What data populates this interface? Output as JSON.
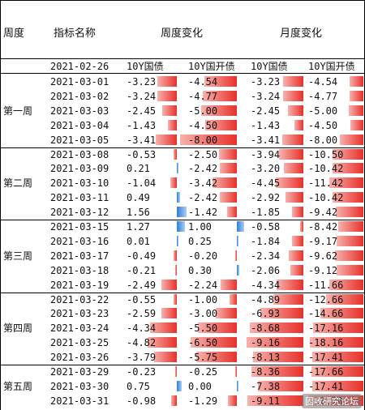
{
  "header": {
    "col_week": "周度",
    "col_indicator": "指标名称",
    "col_weekly_change": "周度变化",
    "col_monthly_change": "月度变化"
  },
  "base_row": {
    "date": "2021-02-26",
    "labels": [
      "10Y国债",
      "10Y国开债",
      "10Y国债",
      "10Y国开债"
    ]
  },
  "weeks": [
    {
      "label": "第一周",
      "rows": [
        {
          "date": "2021-03-01",
          "values": [
            "-3.23",
            "-4.54",
            "-3.23",
            "-4.54"
          ]
        },
        {
          "date": "2021-03-02",
          "values": [
            "-3.24",
            "-4.77",
            "-3.24",
            "-4.77"
          ]
        },
        {
          "date": "2021-03-03",
          "values": [
            "-2.45",
            "-5.00",
            "-2.45",
            "-5.00"
          ]
        },
        {
          "date": "2021-03-04",
          "values": [
            "-1.43",
            "-4.50",
            "-1.43",
            "-4.50"
          ]
        },
        {
          "date": "2021-03-05",
          "values": [
            "-3.41",
            "-8.00",
            "-3.41",
            "-8.00"
          ]
        }
      ]
    },
    {
      "label": "第二周",
      "rows": [
        {
          "date": "2021-03-08",
          "values": [
            "-0.53",
            "-2.50",
            "-3.94",
            "-10.50"
          ]
        },
        {
          "date": "2021-03-09",
          "values": [
            "0.21",
            "-2.42",
            "-3.20",
            "-10.42"
          ]
        },
        {
          "date": "2021-03-10",
          "values": [
            "-1.04",
            "-3.42",
            "-4.45",
            "-11.42"
          ]
        },
        {
          "date": "2021-03-11",
          "values": [
            "0.49",
            "-2.42",
            "-2.92",
            "-10.42"
          ]
        },
        {
          "date": "2021-03-12",
          "values": [
            "1.56",
            "-1.42",
            "-1.85",
            "-9.42"
          ]
        }
      ]
    },
    {
      "label": "第三周",
      "rows": [
        {
          "date": "2021-03-15",
          "values": [
            "1.27",
            "1.00",
            "-0.58",
            "-8.42"
          ]
        },
        {
          "date": "2021-03-16",
          "values": [
            "0.01",
            "0.25",
            "-1.84",
            "-9.17"
          ]
        },
        {
          "date": "2021-03-17",
          "values": [
            "-0.49",
            "-0.20",
            "-2.34",
            "-9.62"
          ]
        },
        {
          "date": "2021-03-18",
          "values": [
            "-0.21",
            "0.30",
            "-2.06",
            "-9.12"
          ]
        },
        {
          "date": "2021-03-19",
          "values": [
            "-2.49",
            "-2.24",
            "-4.34",
            "-11.66"
          ]
        }
      ]
    },
    {
      "label": "第四周",
      "rows": [
        {
          "date": "2021-03-22",
          "values": [
            "-0.55",
            "-1.00",
            "-4.89",
            "-12.66"
          ]
        },
        {
          "date": "2021-03-23",
          "values": [
            "-2.59",
            "-3.00",
            "-6.93",
            "-14.66"
          ]
        },
        {
          "date": "2021-03-24",
          "values": [
            "-4.34",
            "-5.50",
            "-8.68",
            "-17.16"
          ]
        },
        {
          "date": "2021-03-25",
          "values": [
            "-4.82",
            "-6.50",
            "-9.16",
            "-18.16"
          ]
        },
        {
          "date": "2021-03-26",
          "values": [
            "-3.79",
            "-5.75",
            "-8.13",
            "-17.41"
          ]
        }
      ]
    },
    {
      "label": "第五周",
      "rows": [
        {
          "date": "2021-03-29",
          "values": [
            "-0.23",
            "-0.25",
            "-8.36",
            "-17.66"
          ]
        },
        {
          "date": "2021-03-30",
          "values": [
            "0.75",
            "0.00",
            "-7.38",
            "-17.41"
          ]
        },
        {
          "date": "2021-03-31",
          "values": [
            "-0.98",
            "-1.29",
            "-9.11",
            "-18.70"
          ]
        }
      ]
    }
  ],
  "bar_colors": {
    "negative": "#e8302a",
    "positive": "#2f7ed8"
  },
  "watermark": "固收研究论坛"
}
